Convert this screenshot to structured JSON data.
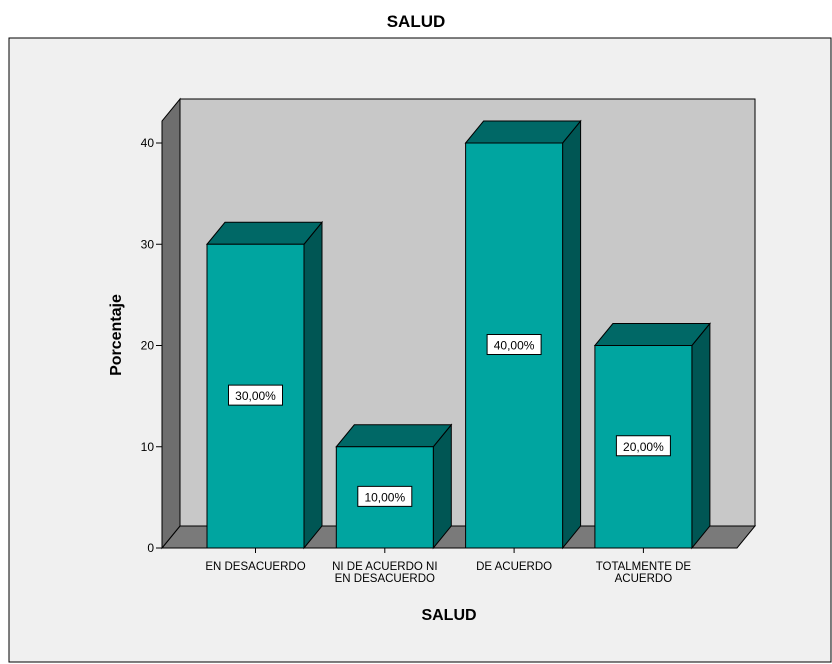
{
  "chart_data": {
    "type": "bar",
    "title": "SALUD",
    "xlabel": "SALUD",
    "ylabel": "Porcentaje",
    "categories": [
      [
        "EN DESACUERDO"
      ],
      [
        "NI DE ACUERDO NI",
        "EN DESACUERDO"
      ],
      [
        "DE ACUERDO"
      ],
      [
        "TOTALMENTE DE",
        "ACUERDO"
      ]
    ],
    "values": [
      30,
      10,
      40,
      20
    ],
    "data_labels": [
      "30,00%",
      "10,00%",
      "40,00%",
      "20,00%"
    ],
    "yticks": [
      "0",
      "10",
      "20",
      "30",
      "40"
    ],
    "ylim": [
      0,
      40
    ],
    "style": "3d",
    "grid": false,
    "legend": "none",
    "colors": {
      "bar_front": "#00a5a0",
      "bar_top": "#006866",
      "bar_side": "#005654",
      "wall": "#c8c8c8",
      "floor": "#7a7a7a",
      "left_wall": "#6e6e6e",
      "frame_bg": "#f0f0f0"
    }
  }
}
